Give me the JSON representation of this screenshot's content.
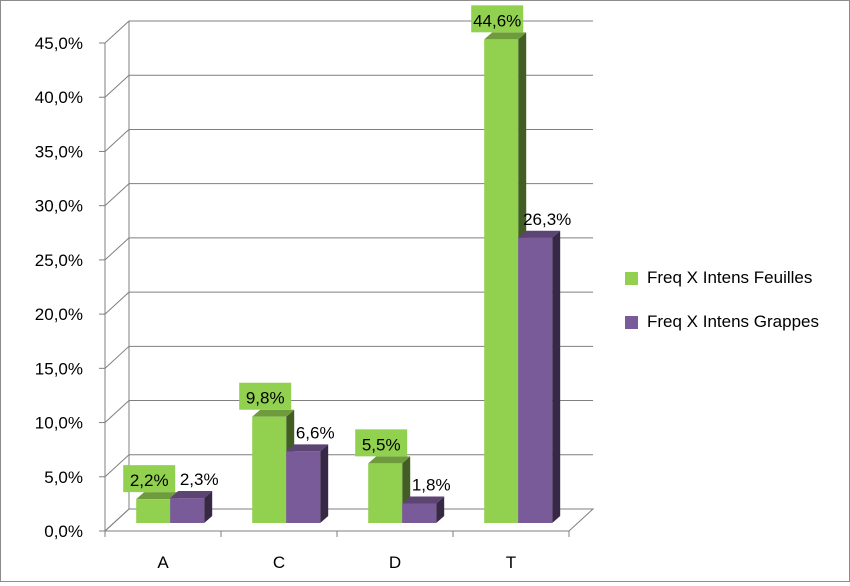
{
  "chart_data": {
    "type": "bar",
    "title": "",
    "xlabel": "",
    "ylabel": "",
    "categories": [
      "A",
      "C",
      "D",
      "T"
    ],
    "series": [
      {
        "name": "Freq X Intens Feuilles",
        "values": [
          2.2,
          9.8,
          5.5,
          44.6
        ],
        "labels": [
          "2,2%",
          "9,8%",
          "5,5%",
          "44,6%"
        ]
      },
      {
        "name": "Freq X Intens Grappes",
        "values": [
          2.3,
          6.6,
          1.8,
          26.3
        ],
        "labels": [
          "2,3%",
          "6,6%",
          "1,8%",
          "26,3%"
        ]
      }
    ],
    "ylim": [
      0,
      45
    ],
    "yticks": [
      0,
      5,
      10,
      15,
      20,
      25,
      30,
      35,
      40,
      45
    ],
    "ytick_labels": [
      "0,0%",
      "5,0%",
      "10,0%",
      "15,0%",
      "20,0%",
      "25,0%",
      "30,0%",
      "35,0%",
      "40,0%",
      "45,0%"
    ],
    "grid": true,
    "legend_position": "right",
    "style": "3d-clustered-column"
  },
  "colors": {
    "series1": "#92d050",
    "series2": "#7a5b99",
    "label_bg_series1": "#92d050",
    "grid": "#7f7f7f",
    "axis": "#7f7f7f"
  }
}
